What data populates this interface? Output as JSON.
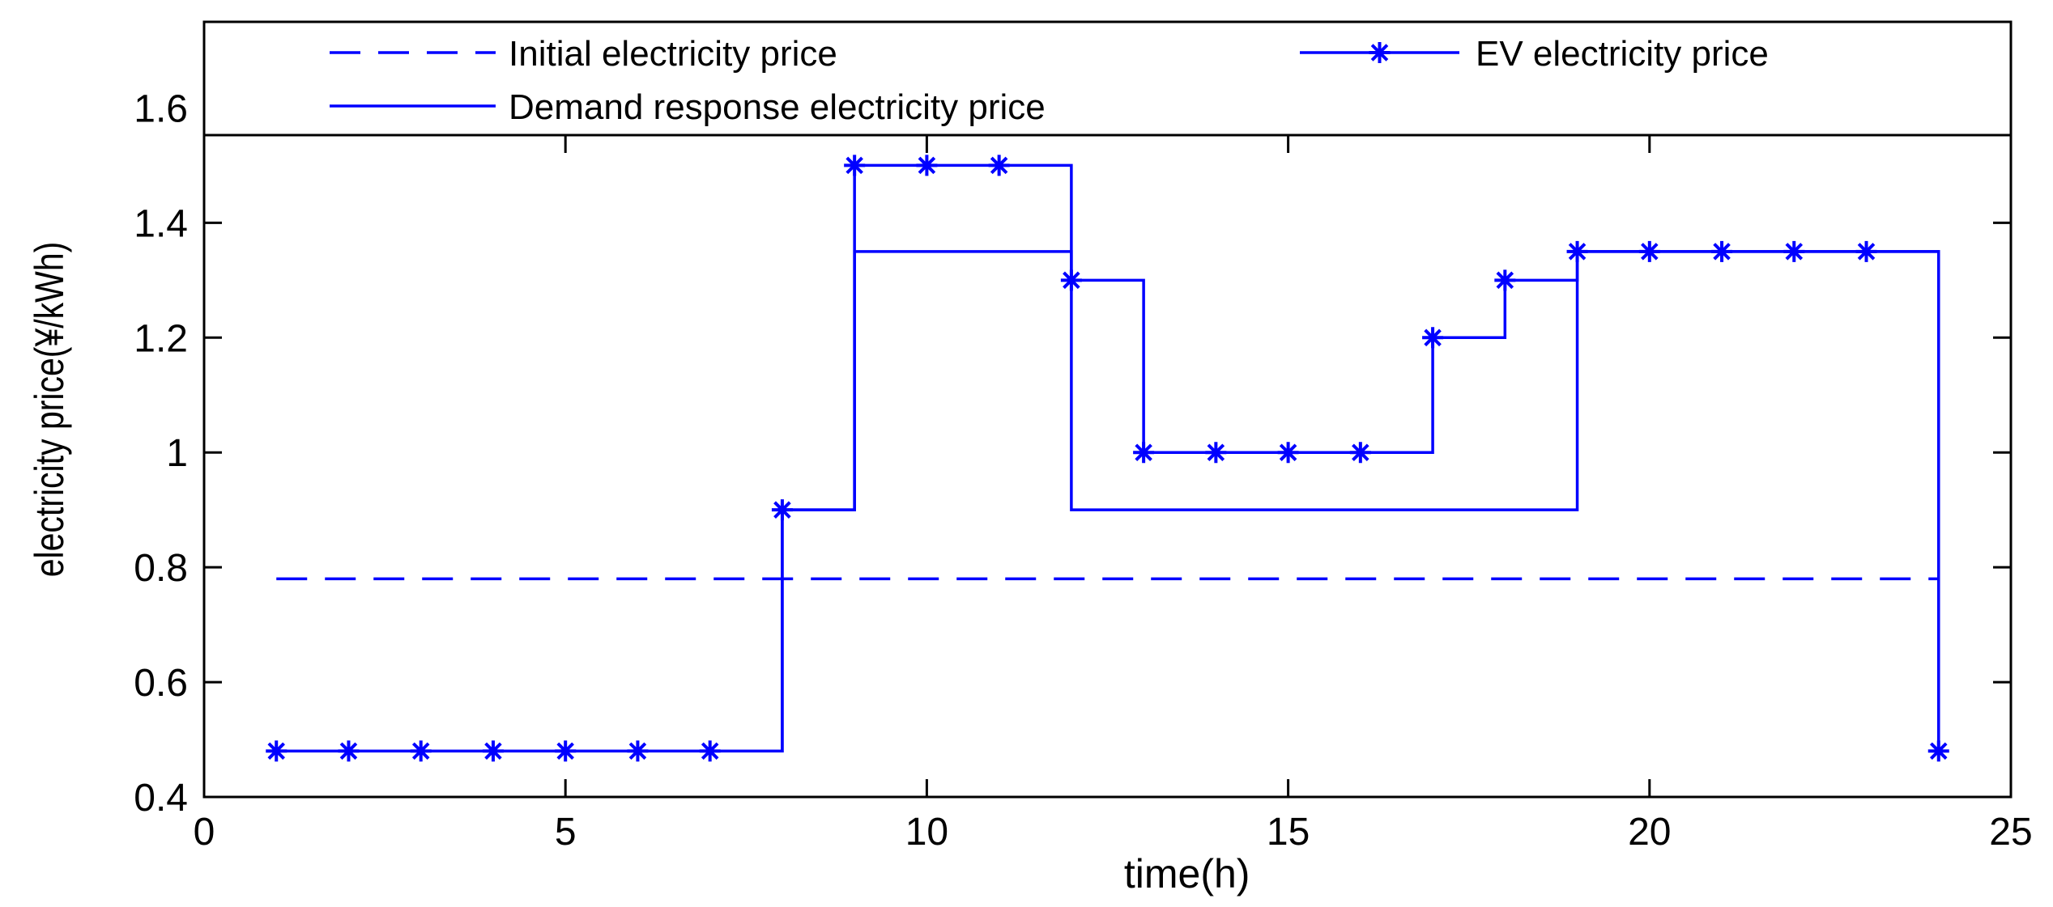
{
  "chart_data": {
    "type": "line",
    "title": "",
    "xlabel": "time(h)",
    "ylabel": "electricity price(¥/kWh)",
    "xlim": [
      0,
      25
    ],
    "ylim": [
      0.4,
      1.75
    ],
    "xticks": [
      0,
      5,
      10,
      15,
      20,
      25
    ],
    "xtick_labels": [
      "0",
      "5",
      "10",
      "15",
      "20",
      "25"
    ],
    "yticks": [
      0.4,
      0.6,
      0.8,
      1.0,
      1.2,
      1.4,
      1.6
    ],
    "ytick_labels": [
      "0.4",
      "0.6",
      "0.8",
      "1",
      "1.2",
      "1.4",
      "1.6"
    ],
    "grid": false,
    "legend_position": "top",
    "color": "#0000ff",
    "series": [
      {
        "name": "Initial electricity price",
        "style": "dashed",
        "x": [
          1,
          24
        ],
        "values": [
          0.78,
          0.78
        ]
      },
      {
        "name": "EV electricity price",
        "style": "stairs-with-star-markers",
        "x": [
          1,
          2,
          3,
          4,
          5,
          6,
          7,
          8,
          9,
          10,
          11,
          12,
          13,
          14,
          15,
          16,
          17,
          18,
          19,
          20,
          21,
          22,
          23,
          24
        ],
        "values": [
          0.48,
          0.48,
          0.48,
          0.48,
          0.48,
          0.48,
          0.48,
          0.9,
          1.5,
          1.5,
          1.5,
          1.3,
          1.0,
          1.0,
          1.0,
          1.0,
          1.2,
          1.3,
          1.35,
          1.35,
          1.35,
          1.35,
          1.35,
          0.48
        ]
      },
      {
        "name": "Demand response electricity price",
        "style": "stairs",
        "x": [
          1,
          2,
          3,
          4,
          5,
          6,
          7,
          8,
          9,
          10,
          11,
          12,
          13,
          14,
          15,
          16,
          17,
          18,
          19,
          20,
          21,
          22,
          23,
          24
        ],
        "values": [
          0.48,
          0.48,
          0.48,
          0.48,
          0.48,
          0.48,
          0.48,
          0.9,
          1.35,
          1.35,
          1.35,
          0.9,
          0.9,
          0.9,
          0.9,
          0.9,
          0.9,
          0.9,
          1.35,
          1.35,
          1.35,
          1.35,
          1.35,
          0.48
        ]
      }
    ]
  }
}
